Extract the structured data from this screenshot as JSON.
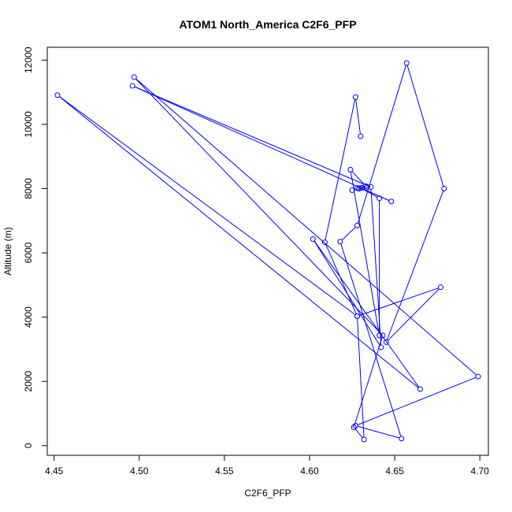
{
  "chart_data": {
    "type": "line",
    "title": "ATOM1 North_America C2F6_PFP",
    "xlabel": "C2F6_PFP",
    "ylabel": "Altitude (m)",
    "xlim": [
      4.446,
      4.705
    ],
    "ylim": [
      -300,
      12400
    ],
    "xticks": [
      {
        "value": 4.45,
        "label": "4.45"
      },
      {
        "value": 4.5,
        "label": "4.50"
      },
      {
        "value": 4.55,
        "label": "4.55"
      },
      {
        "value": 4.6,
        "label": "4.60"
      },
      {
        "value": 4.65,
        "label": "4.65"
      },
      {
        "value": 4.7,
        "label": "4.70"
      }
    ],
    "yticks": [
      {
        "value": 0,
        "label": "0"
      },
      {
        "value": 2000,
        "label": "2000"
      },
      {
        "value": 4000,
        "label": "4000"
      },
      {
        "value": 6000,
        "label": "6000"
      },
      {
        "value": 8000,
        "label": "8000"
      },
      {
        "value": 10000,
        "label": "10000"
      },
      {
        "value": 12000,
        "label": "12000"
      }
    ],
    "grid": false,
    "color": "#0000ff",
    "series": [
      {
        "x": [
          4.63,
          4.627,
          4.609,
          4.628,
          4.632,
          4.626,
          4.643,
          4.497,
          4.699,
          4.627,
          4.654,
          4.618,
          4.628,
          4.657,
          4.679,
          4.645,
          4.677,
          4.628,
          4.452,
          4.665,
          4.602,
          4.642,
          4.636,
          4.496,
          4.648,
          4.63,
          4.641,
          4.641,
          4.624,
          4.633,
          4.631,
          4.634,
          4.628,
          4.629,
          4.625
        ],
        "y": [
          9630,
          10850,
          6330,
          4030,
          190,
          570,
          3430,
          11470,
          2150,
          620,
          220,
          6350,
          6850,
          11910,
          8000,
          3220,
          4930,
          4030,
          10910,
          1760,
          6430,
          3060,
          8050,
          11200,
          7600,
          8020,
          7700,
          3430,
          8590,
          8080,
          8030,
          8050,
          8020,
          8000,
          7950
        ]
      }
    ]
  }
}
